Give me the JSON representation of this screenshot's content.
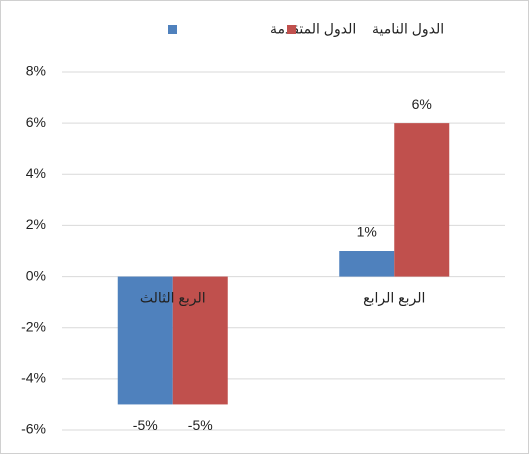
{
  "chart_data": {
    "type": "bar",
    "categories": [
      "الربع الثالث",
      "الربع الرابع"
    ],
    "series": [
      {
        "name": "الدول المتقدمة",
        "color": "#4f81bd",
        "values": [
          -5,
          1
        ],
        "value_labels": [
          "-5%",
          "1%"
        ]
      },
      {
        "name": "الدول النامية",
        "color": "#c0504d",
        "values": [
          -5,
          6
        ],
        "value_labels": [
          "-5%",
          "6%"
        ]
      }
    ],
    "ylim": [
      -6,
      8
    ],
    "yticks": [
      {
        "value": -6,
        "label": "-6%"
      },
      {
        "value": -4,
        "label": "-4%"
      },
      {
        "value": -2,
        "label": "-2%"
      },
      {
        "value": 0,
        "label": "0%"
      },
      {
        "value": 2,
        "label": "2%"
      },
      {
        "value": 4,
        "label": "4%"
      },
      {
        "value": 6,
        "label": "6%"
      },
      {
        "value": 8,
        "label": "8%"
      }
    ],
    "grid": true,
    "legend": "top"
  }
}
